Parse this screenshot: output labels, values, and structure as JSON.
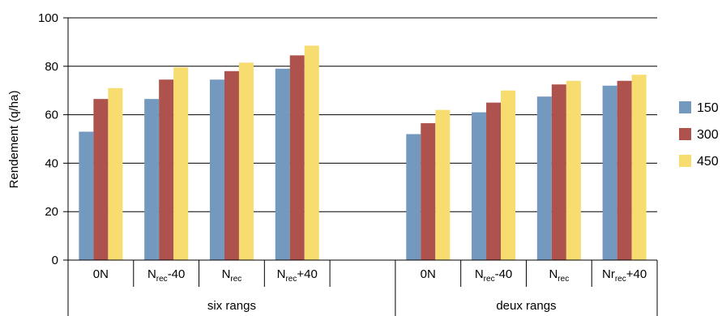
{
  "chart_data": {
    "type": "bar",
    "ylabel": "Rendement (q/ha)",
    "ylim": [
      0,
      100
    ],
    "yticks": [
      0,
      20,
      40,
      60,
      80,
      100
    ],
    "grid": "horizontal",
    "legend_position": "right",
    "groups": [
      {
        "label": "six rangs",
        "categories": [
          {
            "base": "0N",
            "sub": "",
            "suffix": ""
          },
          {
            "base": "N",
            "sub": "rec",
            "suffix": "-40"
          },
          {
            "base": "N",
            "sub": "rec",
            "suffix": ""
          },
          {
            "base": "N",
            "sub": "rec",
            "suffix": "+40"
          },
          {
            "base": "",
            "sub": "",
            "suffix": ""
          }
        ]
      },
      {
        "label": "deux rangs",
        "categories": [
          {
            "base": "0N",
            "sub": "",
            "suffix": ""
          },
          {
            "base": "N",
            "sub": "rec",
            "suffix": "-40"
          },
          {
            "base": "N",
            "sub": "rec",
            "suffix": ""
          },
          {
            "base": "Nr",
            "sub": "rec",
            "suffix": "+40"
          }
        ]
      }
    ],
    "series": [
      {
        "name": "150",
        "color": "#7399bf",
        "values": [
          53,
          66.5,
          74.5,
          79,
          null,
          52,
          61,
          67.5,
          72
        ]
      },
      {
        "name": "300",
        "color": "#ad524c",
        "values": [
          66.5,
          74.5,
          78,
          84.5,
          null,
          56.5,
          65,
          72.5,
          74
        ]
      },
      {
        "name": "450",
        "color": "#f7dc6f",
        "values": [
          71,
          79.5,
          81.5,
          88.5,
          null,
          62,
          70,
          74,
          76.5
        ]
      }
    ]
  }
}
